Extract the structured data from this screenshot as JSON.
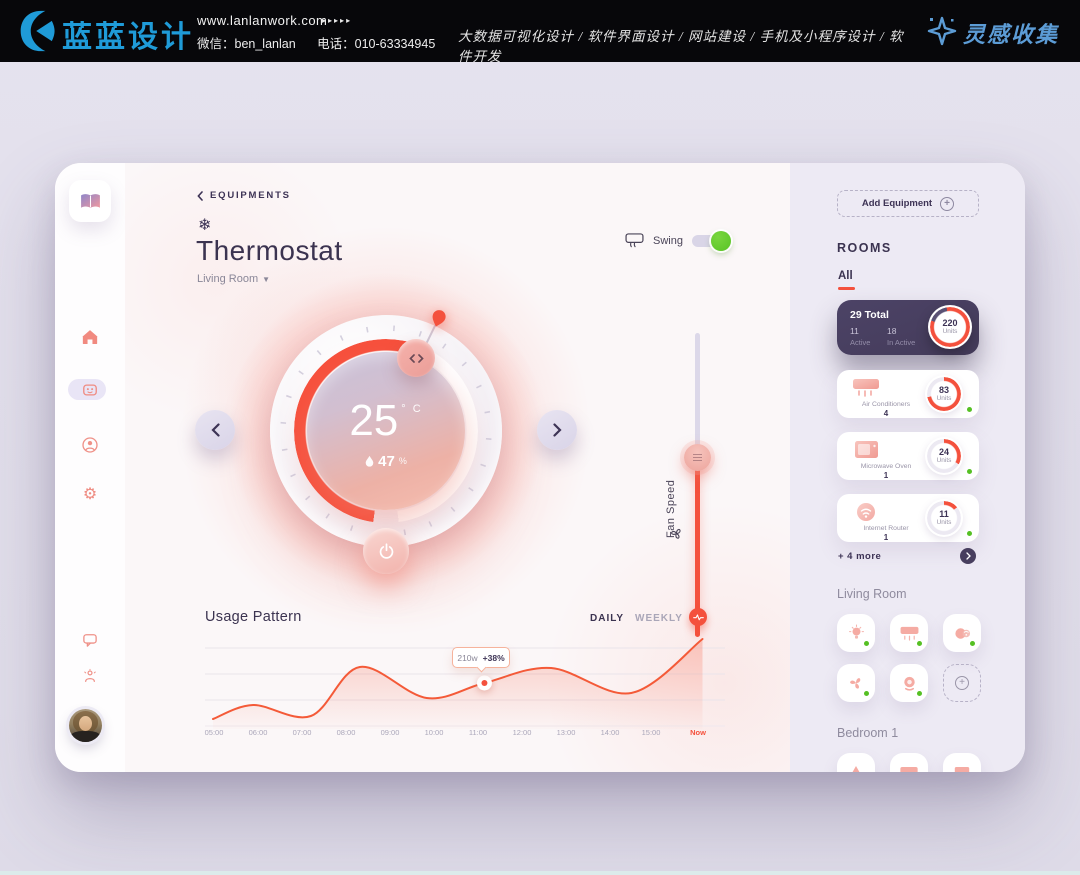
{
  "colors": {
    "accent": "#f4513d",
    "accent_soft": "#f6a79c",
    "green": "#55c023",
    "dark_purple": "#3d3355",
    "panel_card": "#473e5e",
    "brand_blue": "#1f9bd8",
    "collect_blue": "#5c9cd6",
    "ring_track": "#ece9f2",
    "ring_track_dark": "#5a5174"
  },
  "banner": {
    "brand": "蓝蓝设计",
    "website": "www.lanlanwork.com",
    "arrows": "▸▸▸▸▸",
    "wechat": "微信：ben_lanlan",
    "phone": "电话：010-63334945",
    "services": "大数据可视化设计 / 软件界面设计 / 网站建设 / 手机及小程序设计 / 软件开发",
    "collect": "灵感收集"
  },
  "sidebar": {
    "icons": [
      "book-logo",
      "home",
      "devices",
      "account",
      "settings",
      "messages",
      "profile",
      "avatar"
    ]
  },
  "header": {
    "breadcrumb": "EQUIPMENTS",
    "title": "Thermostat",
    "room": "Living Room",
    "swing_label": "Swing",
    "swing_on": true
  },
  "thermostat": {
    "temperature": "25",
    "temp_unit": "° C",
    "humidity": "47",
    "humidity_unit": "%"
  },
  "fan": {
    "label": "Fan Speed"
  },
  "usage": {
    "title": "Usage Pattern",
    "tabs": [
      "DAILY",
      "WEEKLY"
    ],
    "active_tab": "DAILY",
    "tooltip_value": "210w",
    "tooltip_delta": "+38%"
  },
  "chart_data": {
    "type": "area",
    "title": "Usage Pattern",
    "unit": "watts",
    "grid": "horizontal",
    "legend": false,
    "x_tick_labels": [
      "05:00",
      "06:00",
      "07:00",
      "08:00",
      "09:00",
      "10:00",
      "11:00",
      "12:00",
      "13:00",
      "14:00",
      "15:00",
      "Now"
    ],
    "ylim": [
      0,
      450
    ],
    "series": [
      {
        "name": "power-usage",
        "points": [
          {
            "t": "05:00",
            "h": 0.0,
            "v": 30
          },
          {
            "t": "05:55",
            "h": 0.9,
            "v": 100
          },
          {
            "t": "07:10",
            "h": 2.2,
            "v": 45
          },
          {
            "t": "08:20",
            "h": 3.3,
            "v": 290
          },
          {
            "t": "09:50",
            "h": 4.8,
            "v": 135
          },
          {
            "t": "11:05",
            "h": 6.1,
            "v": 210
          },
          {
            "t": "12:35",
            "h": 7.6,
            "v": 285
          },
          {
            "t": "14:25",
            "h": 9.4,
            "v": 160
          },
          {
            "t": "Now",
            "h": 11.0,
            "v": 430
          }
        ]
      }
    ],
    "highlight": {
      "t": "11:05",
      "h": 6.1,
      "v": 210,
      "label": "210w",
      "delta": "+38%"
    }
  },
  "panel": {
    "add_button": "Add Equipment",
    "rooms_title": "ROOMS",
    "filter_all": "All",
    "summary": {
      "total": "29 Total",
      "active_count": "11",
      "active_label": "Active",
      "inactive_count": "18",
      "inactive_label": "In Active",
      "units_value": "220",
      "units_label": "Units",
      "percent": 83
    },
    "equipment": [
      {
        "name": "Air Conditioners",
        "count": "4",
        "units": "83",
        "units_label": "Units",
        "percent": 72,
        "icon": "air-conditioner",
        "active": true
      },
      {
        "name": "Microwave Oven",
        "count": "1",
        "units": "24",
        "units_label": "Units",
        "percent": 33,
        "icon": "microwave-oven",
        "active": true
      },
      {
        "name": "Internet Router",
        "count": "1",
        "units": "11",
        "units_label": "Units",
        "percent": 14,
        "icon": "internet-router",
        "active": true
      }
    ],
    "more_label": "+ 4 more",
    "sections": [
      {
        "name": "Living Room",
        "tiles": [
          "bulb",
          "air-conditioner",
          "wifi-router",
          "fan",
          "camera",
          "add"
        ]
      },
      {
        "name": "Bedroom 1",
        "tiles": [
          "lamp",
          "air-conditioner",
          "heater"
        ]
      }
    ]
  }
}
